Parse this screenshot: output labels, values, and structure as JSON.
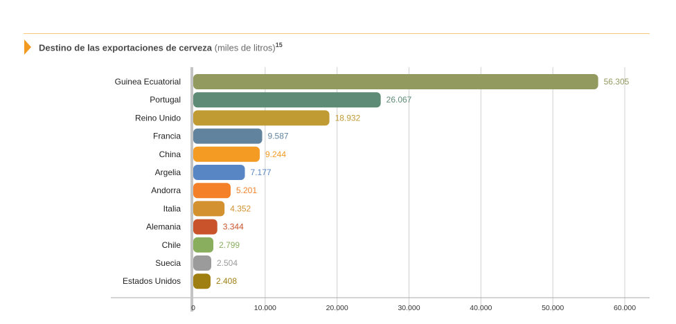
{
  "header": {
    "title_bold": "Destino de las exportaciones de cerveza",
    "title_unit": "(miles de litros)",
    "footnote": "15",
    "accent_color": "#f29a21",
    "rule_color": "#f5c77a"
  },
  "chart_data": {
    "type": "bar",
    "orientation": "horizontal",
    "title": "Destino de las exportaciones de cerveza (miles de litros)",
    "categories": [
      "Guinea Ecuatorial",
      "Portugal",
      "Reino Unido",
      "Francia",
      "China",
      "Argelia",
      "Andorra",
      "Italia",
      "Alemania",
      "Chile",
      "Suecia",
      "Estados Unidos"
    ],
    "values": [
      56305,
      26067,
      18932,
      9587,
      9244,
      7177,
      5201,
      4352,
      3344,
      2799,
      2504,
      2408
    ],
    "value_labels": [
      "56.305",
      "26.067",
      "18.932",
      "9.587",
      "9.244",
      "7.177",
      "5.201",
      "4.352",
      "3.344",
      "2.799",
      "2.504",
      "2.408"
    ],
    "colors": [
      "#939a5f",
      "#5e8b76",
      "#c09a33",
      "#62839d",
      "#f49b24",
      "#5886c4",
      "#f4812a",
      "#d3912f",
      "#c9532a",
      "#89ae5e",
      "#9b9b9b",
      "#a07f12"
    ],
    "xlim": [
      0,
      60000
    ],
    "xticks": [
      0,
      10000,
      20000,
      30000,
      40000,
      50000,
      60000
    ],
    "xtick_labels": [
      "0",
      "10.000",
      "20.000",
      "30.000",
      "40.000",
      "50.000",
      "60.000"
    ],
    "grid": true,
    "xlabel": "",
    "ylabel": ""
  }
}
